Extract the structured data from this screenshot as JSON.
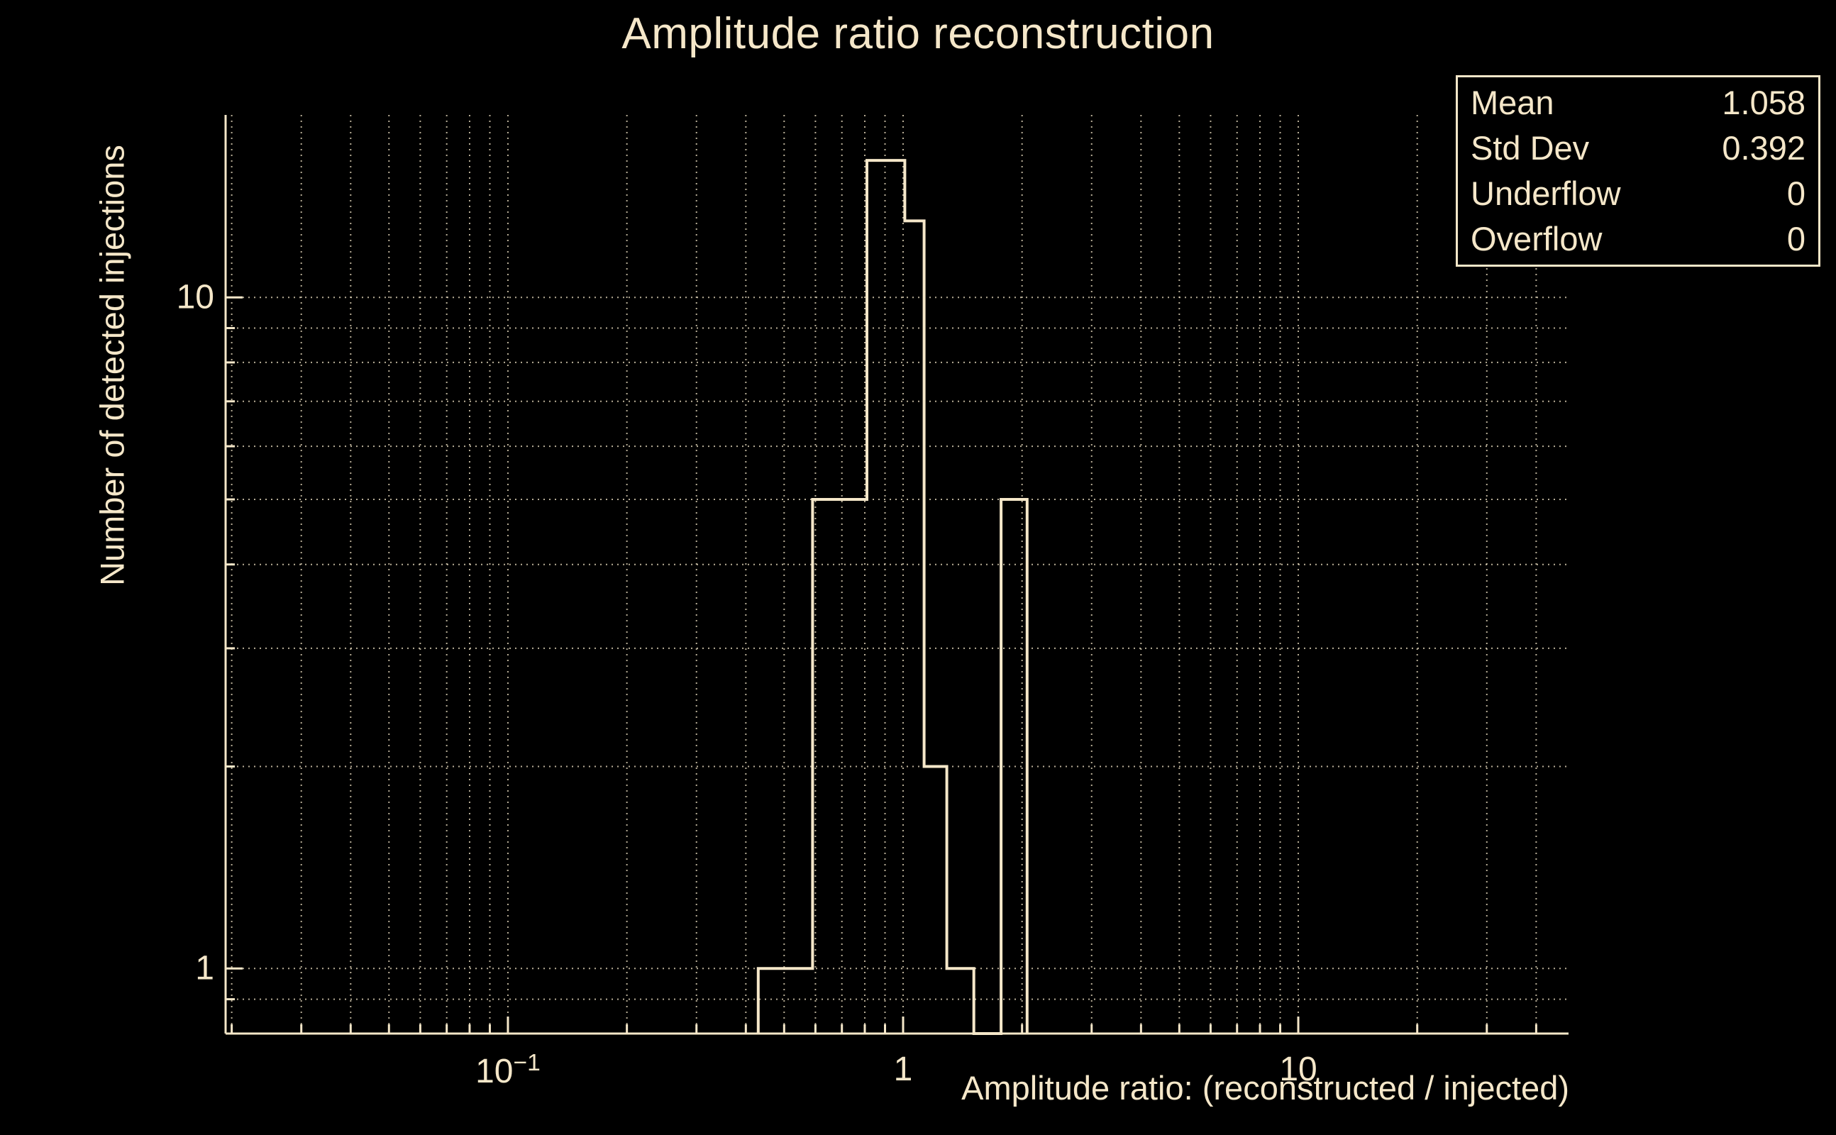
{
  "colors": {
    "background": "#000000",
    "foreground": "#f5e7c9",
    "grid": "#f5e7c9"
  },
  "stats_box": {
    "rows": [
      {
        "label": "Mean",
        "value": "1.058"
      },
      {
        "label": "Std Dev",
        "value": "0.392"
      },
      {
        "label": "Underflow",
        "value": "0"
      },
      {
        "label": "Overflow",
        "value": "0"
      }
    ]
  },
  "chart_data": {
    "type": "bar",
    "style": "step-histogram-outline",
    "title": "Amplitude ratio reconstruction",
    "xlabel": "Amplitude ratio: (reconstructed / injected)",
    "ylabel": "Number of detected injections",
    "xscale": "log",
    "yscale": "log",
    "xlim": [
      0.0193,
      48.3
    ],
    "ylim": [
      0.8,
      18.7
    ],
    "grid": true,
    "legend": "none",
    "x_ticks": [
      {
        "v": 0.1,
        "base": "10",
        "exp": "−1"
      },
      {
        "v": 1,
        "label": "1"
      },
      {
        "v": 10,
        "label": "10"
      }
    ],
    "y_ticks": [
      {
        "v": 1,
        "label": "1"
      },
      {
        "v": 10,
        "label": "10"
      }
    ],
    "bins": [
      {
        "x_low": 0.43,
        "x_high": 0.59,
        "count": 1
      },
      {
        "x_low": 0.59,
        "x_high": 0.81,
        "count": 5
      },
      {
        "x_low": 0.81,
        "x_high": 1.01,
        "count": 16
      },
      {
        "x_low": 1.01,
        "x_high": 1.13,
        "count": 13
      },
      {
        "x_low": 1.13,
        "x_high": 1.29,
        "count": 2
      },
      {
        "x_low": 1.29,
        "x_high": 1.51,
        "count": 1
      },
      {
        "x_low": 1.51,
        "x_high": 1.77,
        "count": 0
      },
      {
        "x_low": 1.77,
        "x_high": 2.06,
        "count": 5
      }
    ],
    "stats": {
      "mean": 1.058,
      "std_dev": 0.392,
      "underflow": 0,
      "overflow": 0
    }
  }
}
